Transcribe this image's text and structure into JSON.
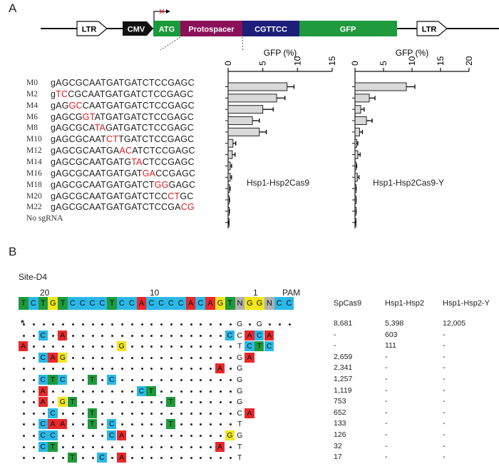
{
  "panelA": {
    "letter": "A",
    "construct": {
      "ltr_left": "LTR",
      "cmv": "CMV",
      "atg": "ATG",
      "protospacer": "Protospacer",
      "cgttcc": "CGTTCC",
      "gfp": "GFP",
      "ltr_right": "LTR",
      "colors": {
        "cmv": "#111111",
        "atg": "#1a9a3a",
        "protospacer": "#8a1058",
        "cgttcc": "#1d1d7a",
        "gfp": "#1f9a3c"
      }
    },
    "rows": [
      {
        "label": "M0",
        "pre": "gAGCGCAATGATGATCTCCGAGC",
        "mut": "",
        "post": ""
      },
      {
        "label": "M2",
        "pre": "g",
        "mut": "TC",
        "post": "CGCAATGATGATCTCCGAGC"
      },
      {
        "label": "M4",
        "pre": "gAG",
        "mut": "GC",
        "post": "CAATGATGATCTCCGAGC"
      },
      {
        "label": "M6",
        "pre": "gAGCG",
        "mut": "GT",
        "post": "ATGATGATCTCCGAGC"
      },
      {
        "label": "M8",
        "pre": "gAGCGCA",
        "mut": "TA",
        "post": "GATGATCTCCGAGC"
      },
      {
        "label": "M10",
        "pre": "gAGCGCAAT",
        "mut": "CT",
        "post": "TGATCTCCGAGC"
      },
      {
        "label": "M12",
        "pre": "gAGCGCAATGA",
        "mut": "AC",
        "post": "ATCTCCGAGC"
      },
      {
        "label": "M14",
        "pre": "gAGCGCAATGATG",
        "mut": "TA",
        "post": "CTCCGAGC"
      },
      {
        "label": "M16",
        "pre": "gAGCGCAATGATGAT",
        "mut": "GA",
        "post": "CCGAGC"
      },
      {
        "label": "M18",
        "pre": "gAGCGCAATGATGATCT",
        "mut": "GG",
        "post": "GAGC"
      },
      {
        "label": "M20",
        "pre": "gAGCGCAATGATGATCTCC",
        "mut": "CT",
        "post": "GC"
      },
      {
        "label": "M22",
        "pre": "gAGCGCAATGATGATCTCCGA",
        "mut": "CG",
        "post": ""
      },
      {
        "label": "No sgRNA",
        "pre": "",
        "mut": "",
        "post": ""
      }
    ],
    "chart_data": [
      {
        "type": "bar",
        "title": "",
        "xlabel": "GFP (%)",
        "xlim": [
          0,
          15
        ],
        "xticks": [
          "0",
          "5",
          "10",
          "15"
        ],
        "categories": [
          "M0",
          "M2",
          "M4",
          "M6",
          "M8",
          "M10",
          "M12",
          "M14",
          "M16",
          "M18",
          "M20",
          "M22",
          "No sgRNA"
        ],
        "values": [
          8.5,
          7.0,
          5.0,
          3.5,
          4.5,
          0.7,
          0.6,
          0.3,
          0.3,
          0.2,
          0.1,
          0.1,
          0.05
        ],
        "errors": [
          1.0,
          1.2,
          1.5,
          1.0,
          1.0,
          0.4,
          0.4,
          0.2,
          0.2,
          0.1,
          0.1,
          0.1,
          0.05
        ],
        "series_label": "Hsp1-Hsp2Cas9"
      },
      {
        "type": "bar",
        "title": "",
        "xlabel": "GFP (%)",
        "xlim": [
          0,
          20
        ],
        "xticks": [
          "0",
          "5",
          "10",
          "15",
          "20"
        ],
        "categories": [
          "M0",
          "M2",
          "M4",
          "M6",
          "M8",
          "M10",
          "M12",
          "M14",
          "M16",
          "M18",
          "M20",
          "M22",
          "No sgRNA"
        ],
        "values": [
          9.0,
          2.5,
          1.0,
          2.0,
          0.8,
          0.3,
          0.5,
          0.2,
          0.4,
          0.1,
          0.1,
          0.1,
          0.05
        ],
        "errors": [
          1.5,
          1.0,
          0.6,
          1.0,
          0.5,
          0.2,
          0.4,
          0.1,
          0.3,
          0.1,
          0.1,
          0.1,
          0.05
        ],
        "series_label": "Hsp1-Hsp2Cas9-Y"
      }
    ]
  },
  "panelB": {
    "letter": "B",
    "site": "Site-D4",
    "pos_labels": [
      "20",
      "10",
      "1",
      "PAM"
    ],
    "target": [
      "T",
      "C",
      "T",
      "G",
      "T",
      "C",
      "C",
      "C",
      "C",
      "T",
      "C",
      "C",
      "A",
      "C",
      "C",
      "C",
      "C",
      "A",
      "C",
      "A",
      "G",
      "T",
      "N",
      "G",
      "G",
      "N",
      "C",
      "C"
    ],
    "columns": [
      "SpCas9",
      "Hsp1-Hsp2",
      "Hsp1-Hsp2-Y"
    ],
    "rows": [
      {
        "mark": "*",
        "cells": [
          "",
          "",
          "",
          "",
          "",
          "",
          "",
          "",
          "",
          "",
          "",
          "",
          "",
          "",
          "",
          "",
          "",
          "",
          "",
          "",
          "",
          "",
          "G",
          "",
          "G",
          "",
          "",
          ""
        ],
        "counts": [
          "8,681",
          "5,398",
          "12,005"
        ]
      },
      {
        "mark": "",
        "cells": [
          "",
          "",
          "C",
          "",
          "A",
          "",
          "",
          "",
          "",
          "",
          "",
          "",
          "",
          "",
          "",
          "",
          "",
          "",
          "",
          "",
          "",
          "C",
          "C",
          "A",
          "C",
          "A",
          "",
          ""
        ],
        "counts": [
          "-",
          "603",
          "-"
        ]
      },
      {
        "mark": "",
        "cells": [
          "A",
          "",
          "",
          "",
          "",
          "",
          "",
          "",
          "",
          "",
          "G",
          "",
          "",
          "",
          "",
          "",
          "",
          "",
          "",
          "",
          "",
          "",
          "T",
          "C",
          "T",
          "C",
          "",
          ""
        ],
        "counts": [
          "-",
          "111",
          "-"
        ]
      },
      {
        "mark": "",
        "cells": [
          "",
          "",
          "C",
          "A",
          "G",
          "",
          "",
          "",
          "",
          "",
          "",
          "",
          "",
          "",
          "",
          "",
          "",
          "",
          "",
          "",
          "",
          "",
          "G",
          "A",
          "",
          "",
          "",
          ""
        ],
        "counts": [
          "2,659",
          "-",
          "-"
        ]
      },
      {
        "mark": "",
        "cells": [
          "",
          "",
          "",
          "",
          "",
          "",
          "",
          "",
          "",
          "",
          "",
          "",
          "",
          "",
          "",
          "",
          "",
          "",
          "",
          "",
          "A",
          "",
          "G",
          "",
          "",
          "",
          "",
          ""
        ],
        "counts": [
          "2,341",
          "-",
          "-"
        ]
      },
      {
        "mark": "",
        "cells": [
          "",
          "",
          "C",
          "T",
          "C",
          "",
          "",
          "T",
          "",
          "C",
          "",
          "",
          "",
          "",
          "",
          "",
          "",
          "",
          "",
          "",
          "",
          "",
          "G",
          "",
          "",
          "",
          "",
          ""
        ],
        "counts": [
          "1,257",
          "-",
          "-"
        ]
      },
      {
        "mark": "",
        "cells": [
          "",
          "",
          "A",
          "",
          "",
          "",
          "",
          "",
          "",
          "",
          "",
          "",
          "C",
          "T",
          "",
          "",
          "",
          "",
          "",
          "",
          "",
          "",
          "G",
          "",
          "",
          "",
          "",
          ""
        ],
        "counts": [
          "1,119",
          "-",
          "-"
        ]
      },
      {
        "mark": "",
        "cells": [
          "",
          "",
          "A",
          "",
          "G",
          "T",
          "",
          "",
          "",
          "",
          "",
          "",
          "",
          "",
          "",
          "T",
          "",
          "",
          "",
          "",
          "",
          "",
          "G",
          "",
          "",
          "",
          "",
          ""
        ],
        "counts": [
          "753",
          "-",
          "-"
        ]
      },
      {
        "mark": "",
        "cells": [
          "",
          "",
          "",
          "C",
          "",
          "",
          "",
          "T",
          "",
          "",
          "",
          "",
          "",
          "",
          "",
          "",
          "",
          "",
          "",
          "",
          "",
          "",
          "C",
          "A",
          "",
          "",
          "",
          ""
        ],
        "counts": [
          "652",
          "-",
          "-"
        ]
      },
      {
        "mark": "",
        "cells": [
          "",
          "",
          "C",
          "A",
          "A",
          "",
          "",
          "T",
          "",
          "C",
          "",
          "",
          "",
          "",
          "",
          "T",
          "",
          "",
          "",
          "",
          "",
          "",
          "T",
          "",
          "",
          "",
          "",
          ""
        ],
        "counts": [
          "133",
          "-",
          "-"
        ]
      },
      {
        "mark": "",
        "cells": [
          "",
          "",
          "C",
          "C",
          "",
          "",
          "",
          "",
          "",
          "C",
          "A",
          "",
          "",
          "",
          "",
          "",
          "",
          "",
          "",
          "",
          "",
          "G",
          "G",
          "",
          "",
          "",
          "",
          ""
        ],
        "counts": [
          "126",
          "-",
          "-"
        ]
      },
      {
        "mark": "",
        "cells": [
          "",
          "",
          "C",
          "T",
          "",
          "",
          "",
          "",
          "",
          "",
          "",
          "",
          "",
          "",
          "",
          "",
          "",
          "",
          "",
          "",
          "A",
          "",
          "T",
          "",
          "",
          "",
          "",
          ""
        ],
        "counts": [
          "32",
          "-",
          "-"
        ]
      },
      {
        "mark": "",
        "cells": [
          "",
          "",
          "",
          "",
          "",
          "T",
          "",
          "",
          "C",
          "",
          "A",
          "",
          "",
          "",
          "",
          "",
          "",
          "",
          "",
          "",
          "",
          "",
          "T",
          "",
          "",
          "",
          "",
          ""
        ],
        "counts": [
          "17",
          "-",
          "-"
        ]
      }
    ],
    "dot_cols_default": 22,
    "base_colors": {
      "A": "#e8282b",
      "C": "#2ab8e8",
      "G": "#f2e61c",
      "T": "#1e9a3c",
      "N": "#b0b0b0"
    }
  }
}
